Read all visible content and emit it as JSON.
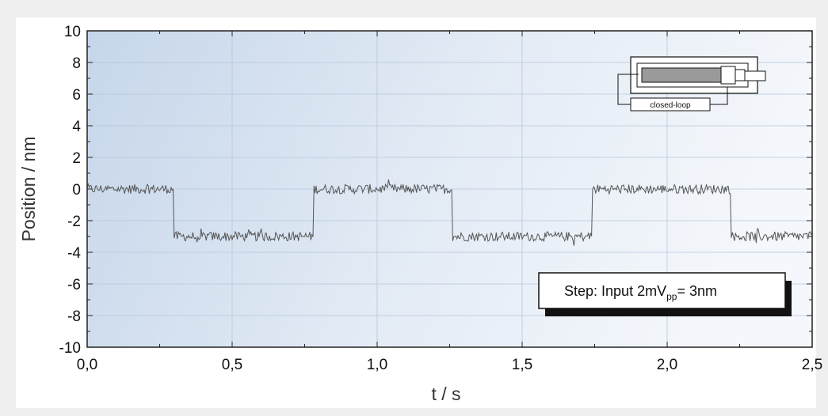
{
  "chart_data": {
    "type": "line",
    "xlabel": "t / s",
    "ylabel": "Position / nm",
    "xlim": [
      0.0,
      2.5
    ],
    "ylim": [
      -10,
      10
    ],
    "xticks": [
      "0,0",
      "0,5",
      "1,0",
      "1,5",
      "2,0",
      "2,5"
    ],
    "yticks": [
      "10",
      "8",
      "6",
      "4",
      "2",
      "0",
      "-2",
      "-4",
      "-6",
      "-8",
      "-10"
    ],
    "grid": true,
    "series": [
      {
        "levels": [
          {
            "x": [
              0.0,
              0.3
            ],
            "y": 0.0
          },
          {
            "x": [
              0.3,
              0.78
            ],
            "y": -3.0
          },
          {
            "x": [
              0.78,
              1.26
            ],
            "y": 0.0
          },
          {
            "x": [
              1.26,
              1.74
            ],
            "y": -3.0
          },
          {
            "x": [
              1.74,
              2.22
            ],
            "y": 0.0
          },
          {
            "x": [
              2.22,
              2.5
            ],
            "y": -3.0
          }
        ],
        "noise_amplitude_nm": 0.3
      }
    ],
    "annotations": {
      "step_box_text": "Step: Input 2mV",
      "step_box_sub": "pp",
      "step_box_tail": "= 3nm",
      "inset_label": "closed-loop"
    }
  },
  "colors": {
    "plot_bg_left": "#c9d8ea",
    "plot_bg_right": "#f2f6fb",
    "line": "#555555",
    "grid": "#b7c7da"
  }
}
